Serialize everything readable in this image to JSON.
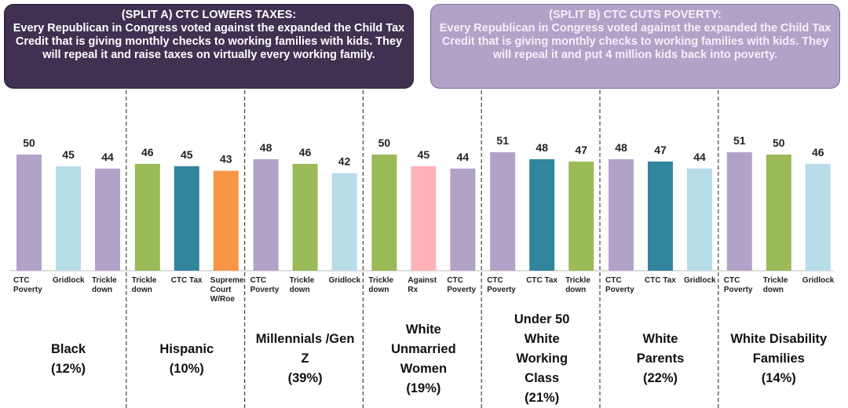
{
  "header": {
    "split_a": {
      "title": "(SPLIT A) CTC LOWERS TAXES:",
      "text": "Every Republican in Congress voted against the expanded the Child Tax Credit that is giving monthly checks to working families with kids. They will repeal it and raise taxes on virtually every working family."
    },
    "split_b": {
      "title": "(SPLIT B) CTC CUTS POVERTY:",
      "text": "Every Republican in Congress voted against the expanded the Child Tax Credit that is giving monthly checks to working families with kids. They will repeal it and put 4 million kids back into poverty."
    }
  },
  "chart_data": {
    "type": "grouped_bar",
    "groups": [
      {
        "name": "Black",
        "share": "(12%)",
        "categories": [
          "CTC Poverty",
          "Gridlock",
          "Trickle down"
        ],
        "values": [
          50,
          45,
          44
        ],
        "colors": [
          "#b3a2c8",
          "#b7dde8",
          "#b3a2c8"
        ]
      },
      {
        "name": "Hispanic",
        "share": "(10%)",
        "categories": [
          "Trickle down",
          "CTC Tax",
          "Supreme Court W/Roe"
        ],
        "values": [
          46,
          45,
          43
        ],
        "colors": [
          "#9bbb59",
          "#31859c",
          "#f79646"
        ]
      },
      {
        "name": "Millennials /Gen Z",
        "share": "(39%)",
        "categories": [
          "CTC Poverty",
          "Trickle down",
          "Gridlock"
        ],
        "values": [
          48,
          46,
          42
        ],
        "colors": [
          "#b3a2c8",
          "#9bbb59",
          "#b7dde8"
        ]
      },
      {
        "name": "White Unmarried Women",
        "share": "(19%)",
        "categories": [
          "Trickle down",
          "Against Rx",
          "CTC Poverty"
        ],
        "values": [
          50,
          45,
          44
        ],
        "colors": [
          "#9bbb59",
          "#ffb3b8",
          "#b3a2c8"
        ]
      },
      {
        "name": "Under 50 White Working Class",
        "share": "(21%)",
        "categories": [
          "CTC Poverty",
          "CTC Tax",
          "Trickle down"
        ],
        "values": [
          51,
          48,
          47
        ],
        "colors": [
          "#b3a2c8",
          "#31859c",
          "#9bbb59"
        ]
      },
      {
        "name": "White Parents",
        "share": "(22%)",
        "categories": [
          "CTC Poverty",
          "CTC Tax",
          "Gridlock"
        ],
        "values": [
          48,
          47,
          44
        ],
        "colors": [
          "#b3a2c8",
          "#31859c",
          "#b7dde8"
        ]
      },
      {
        "name": "White Disability Families",
        "share": "(14%)",
        "categories": [
          "CTC Poverty",
          "Trickle down",
          "Gridlock"
        ],
        "values": [
          51,
          50,
          46
        ],
        "colors": [
          "#b3a2c8",
          "#9bbb59",
          "#b7dde8"
        ]
      }
    ]
  }
}
